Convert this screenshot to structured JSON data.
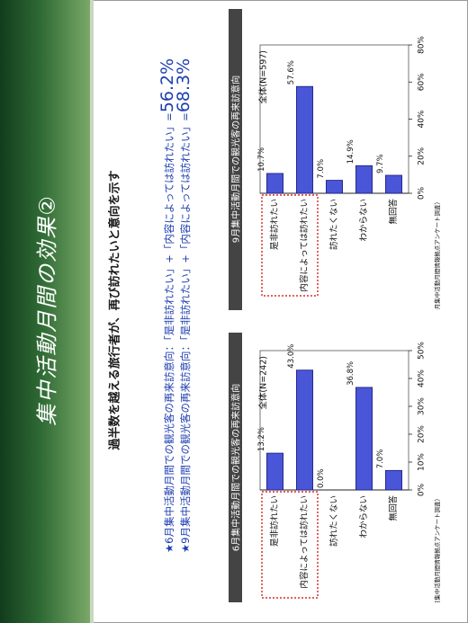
{
  "slide": {
    "title": "集中活動月間の効果②",
    "headline": "過半数を越える旅行者が、再び訪れたいと意向を示す",
    "note_june_prefix": "★6月集中活動月間での観光客の再来訪意向：「是非訪れたい」+「内容によっては訪れたい」=",
    "note_june_value": "56.2%",
    "note_sept_prefix": "★9月集中活動月間での観光客の再来訪意向：「是非訪れたい」+「内容によっては訪れたい」=",
    "note_sept_value": "68.3%"
  },
  "colors": {
    "bar_fill": "#4a56d8",
    "bar_stroke": "#1a1a7a",
    "title_dark": "#123c1c",
    "highlight": "#cc0000"
  },
  "chart_data": [
    {
      "type": "bar",
      "panel_title": "6月集中活動月間での観光客の再来訪意向",
      "total_label": "全体(N=242)",
      "source": "（6月集中活動月間情報拠点アンケート調査）",
      "categories": [
        "是非訪れたい",
        "内容によっては訪れたい",
        "訪れたくない",
        "わからない",
        "無回答"
      ],
      "values": [
        13.2,
        43.0,
        0.0,
        36.8,
        7.0
      ],
      "value_labels": [
        "13.2%",
        "43.0%",
        "0.0%",
        "36.8%",
        "7.0%"
      ],
      "ticks": [
        "0%",
        "10%",
        "20%",
        "30%",
        "40%",
        "50%"
      ],
      "ylim": [
        0,
        50
      ],
      "highlighted_categories": [
        0,
        1
      ]
    },
    {
      "type": "bar",
      "panel_title": "9月集中活動月間での観光客の再来訪意向",
      "total_label": "全体(N=597)",
      "source": "（9月集中活動月間情報拠点アンケート調査）",
      "categories": [
        "是非訪れたい",
        "内容によっては訪れたい",
        "訪れたくない",
        "わからない",
        "無回答"
      ],
      "values": [
        10.7,
        57.6,
        7.0,
        14.9,
        9.7
      ],
      "value_labels": [
        "10.7%",
        "57.6%",
        "7.0%",
        "14.9%",
        "9.7%"
      ],
      "ticks": [
        "0%",
        "20%",
        "40%",
        "60%",
        "80%"
      ],
      "ylim": [
        0,
        80
      ],
      "highlighted_categories": [
        0,
        1
      ]
    }
  ]
}
